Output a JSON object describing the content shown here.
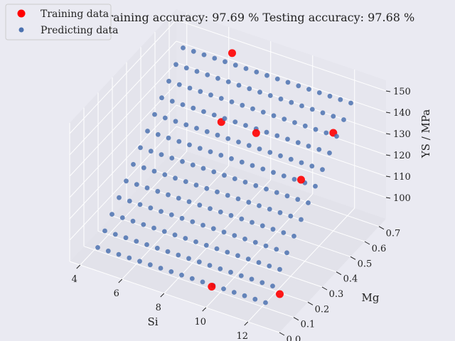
{
  "chart_data": {
    "type": "scatter",
    "title": "Training accuracy: 97.69 %  Testing accuracy: 97.68 %",
    "xlabel": "Si",
    "ylabel": "Mg",
    "zlabel": "YS / MPa",
    "xlim": [
      3.5,
      13.5
    ],
    "ylim": [
      0.0,
      0.75
    ],
    "zlim": [
      90,
      155
    ],
    "xticks": [
      4,
      6,
      8,
      10,
      12
    ],
    "yticks": [
      0.0,
      0.1,
      0.2,
      0.3,
      0.4,
      0.5,
      0.6,
      0.7
    ],
    "zticks": [
      100,
      110,
      120,
      130,
      140,
      150
    ],
    "legend": {
      "position": "top-left",
      "entries": [
        "Training data",
        "Predicting data"
      ]
    },
    "series": [
      {
        "name": "Training data",
        "color": "#ff0000",
        "points": [
          {
            "si": 7.0,
            "mg": 0.55,
            "ys": 128
          },
          {
            "si": 9.0,
            "mg": 0.5,
            "ys": 133
          },
          {
            "si": 12.0,
            "mg": 0.6,
            "ys": 136
          },
          {
            "si": 12.5,
            "mg": 0.3,
            "ys": 137
          },
          {
            "si": 12.5,
            "mg": 0.15,
            "ys": 94
          },
          {
            "si": 10.0,
            "mg": 0.04,
            "ys": 97
          },
          {
            "si": 6.5,
            "mg": 0.7,
            "ys": 148
          }
        ]
      },
      {
        "name": "Predicting data",
        "color": "#4c72b0",
        "grid": {
          "si": [
            4.5,
            5.0,
            5.5,
            6.0,
            6.5,
            7.0,
            7.5,
            8.0,
            8.5,
            9.0,
            9.5,
            10.0,
            10.5,
            11.0,
            11.5,
            12.0,
            12.5
          ],
          "mg": [
            0.05,
            0.1,
            0.15,
            0.2,
            0.25,
            0.3,
            0.35,
            0.4,
            0.45,
            0.5,
            0.55,
            0.6,
            0.65
          ],
          "ys_model": {
            "base": 92,
            "per_mg": 85,
            "per_si": 0.1
          }
        }
      }
    ]
  }
}
